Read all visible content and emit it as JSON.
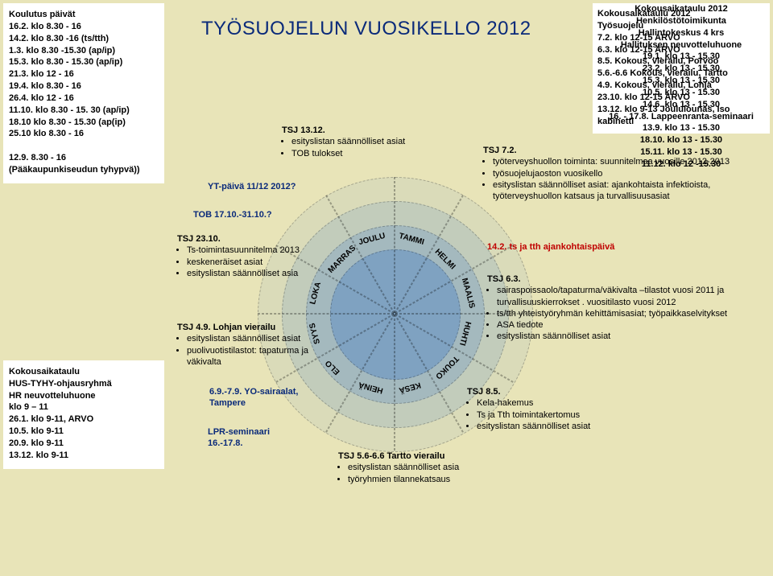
{
  "title": "TYÖSUOJELUN VUOSIKELLO 2012",
  "left_box1_title": "Koulutus päivät",
  "left_box1_lines": [
    "16.2. klo 8.30 - 16",
    "14.2. klo 8.30 -16 (ts/tth)",
    "1.3. klo 8.30 -15.30 (ap/ip)",
    "15.3. klo 8.30 - 15.30 (ap/ip)",
    "21.3. klo 12 - 16",
    "19.4. klo 8.30 - 16",
    "26.4. klo 12 - 16",
    "11.10. klo 8.30 - 15. 30 (ap/ip)",
    "18.10 klo 8.30 - 15.30 (ap(ip)",
    "25.10 klo 8.30 - 16",
    "",
    "12.9. 8.30 - 16",
    "(Pääkaupunkiseudun tyhypvä))"
  ],
  "left_box2_title": "Kokousaikataulu\nHUS-TYHY-ohjausryhmä\nHR neuvotteluhuone\nklo 9 – 11",
  "left_box2_lines": [
    "26.1. klo 9-11, ARVO",
    "10.5. klo 9-11",
    "20.9. klo 9-11",
    "13.12. klo 9-11"
  ],
  "right_box1_title": "Kokousaikataulu 2012\nTyösuojelu",
  "right_box1_lines": [
    "7.2. klo 12-15 ARVO",
    "6.3. klo 12-15 ARVO",
    "8.5. Kokous, vierailu, Porvoo",
    "5.6.-6.6 Kokous, vierailu, Tartto",
    "4.9. Kokous, vierailu, Lohja",
    "23.10. klo 12-15 ARVO",
    "13.12. klo 9-13 Joululounas, Iso kabinetti"
  ],
  "right_box2_title": "Kokousaikataulu 2012\nHenkilöstötoimikunta\nHallintokeskus 4 krs\nHallituksen neuvotteluhuone",
  "right_box2_lines": [
    "19.1. klo 13 - 15.30",
    "23.2. klo 13 - 15.30",
    "15.3. klo 13 - 15.30",
    "10.5. klo 13 - 15.30",
    "14.6. klo 13 - 15.30",
    "16. - 17.8. Lappeenranta-seminaari",
    "13.9. klo 13 - 15.30",
    "18.10. klo 13 - 15.30",
    "15.11. klo 13 - 15.30",
    "11.12. klo 12 -15.30"
  ],
  "months": [
    "TAMMI",
    "HELMI",
    "MAALIS",
    "HUHTI",
    "TOUKO",
    "KESÄ",
    "HEINÄ",
    "ELO",
    "SYYS",
    "LOKA",
    "MARRAS",
    "JOULU"
  ],
  "notes": {
    "tsj1312": {
      "hd": "TSJ 13.12.",
      "items": [
        "esityslistan säännölliset asiat",
        "TOB tulokset"
      ]
    },
    "yt": "YT-päivä 11/12 2012?",
    "tob": "TOB 17.10.-31.10.?",
    "tsj2310": {
      "hd": "TSJ 23.10.",
      "items": [
        "Ts-toimintasuunnitelma 2013",
        "keskeneräiset asiat",
        "esityslistan säännölliset asia"
      ]
    },
    "tsj49": {
      "hd": "TSJ 4.9. Lohjan vierailu",
      "items": [
        "esityslistan säännölliset asiat",
        "puolivuotistilastot: tapaturma ja väkivalta"
      ]
    },
    "yo": "6.9.-7.9. YO-sairaalat, Tampere",
    "lpr": "LPR-seminaari 16.-17.8.",
    "tsj72": {
      "hd": "TSJ 7.2.",
      "items": [
        "työterveyshuollon toiminta: suunnitelmaa vuosille 2012-2013",
        "työsuojelujaoston vuosikello",
        "esityslistan säännölliset asiat: ajankohtaista infektioista, työterveyshuollon katsaus ja turvallisuusasiat"
      ]
    },
    "red142": "14.2. ts ja tth ajankohtaispäivä",
    "tsj63": {
      "hd": "TSJ 6.3.",
      "items": [
        "sairaspoissaolo/tapaturma/väkivalta –tilastot vuosi 2011 ja turvallisuuskierrokset . vuositilasto vuosi 2012",
        "ts/tth yhteistyöryhmän kehittämisasiat; työpaikkaselvitykset",
        "ASA tiedote",
        "esityslistan säännölliset asiat"
      ]
    },
    "tsj85": {
      "hd": "TSJ 8.5.",
      "items": [
        "Kela-hakemus",
        "Ts ja Tth  toimintakertomus",
        "esityslistan säännölliset asiat"
      ]
    },
    "tsj56": {
      "hd": "TSJ 5.6-6.6 Tartto vierailu",
      "items": [
        "esityslistan säännölliset asia",
        "työryhmien tilannekatsaus"
      ]
    }
  },
  "colors": {
    "bg": "#e8e4b8",
    "title": "#0a2a7a",
    "ring": "#6fa0d8",
    "red": "#c00000"
  }
}
